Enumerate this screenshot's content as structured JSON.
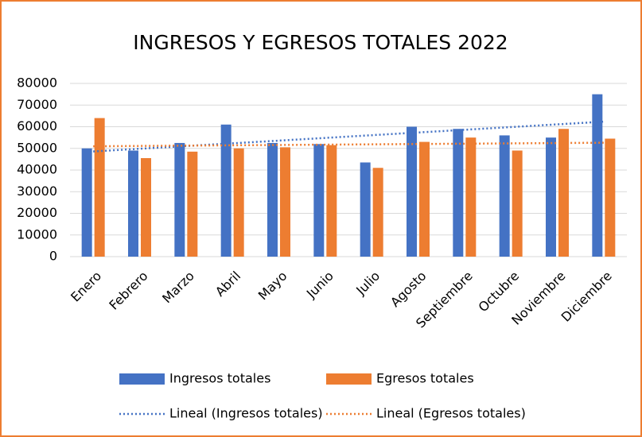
{
  "chart_data": {
    "type": "bar",
    "title": "INGRESOS Y EGRESOS TOTALES 2022",
    "categories": [
      "Enero",
      "Febrero",
      "Marzo",
      "Abril",
      "Mayo",
      "Junio",
      "Julio",
      "Agosto",
      "Septiembre",
      "Octubre",
      "Noviembre",
      "Diciembre"
    ],
    "series": [
      {
        "name": "Ingresos totales",
        "color": "#4472c4",
        "values": [
          50000,
          49000,
          52500,
          61000,
          52500,
          52000,
          43500,
          60000,
          59000,
          56000,
          55000,
          75000
        ],
        "trendline": {
          "type": "linear",
          "name": "Lineal (Ingresos totales)"
        }
      },
      {
        "name": "Egresos totales",
        "color": "#ed7d31",
        "values": [
          64000,
          45500,
          48500,
          50000,
          50500,
          51500,
          41000,
          53000,
          55000,
          49000,
          59000,
          54500
        ],
        "trendline": {
          "type": "linear",
          "name": "Lineal (Egresos totales)"
        }
      }
    ],
    "ylim": [
      0,
      80000
    ],
    "yticks": [
      0,
      10000,
      20000,
      30000,
      40000,
      50000,
      60000,
      70000,
      80000
    ],
    "grid": true,
    "legend": "bottom"
  }
}
